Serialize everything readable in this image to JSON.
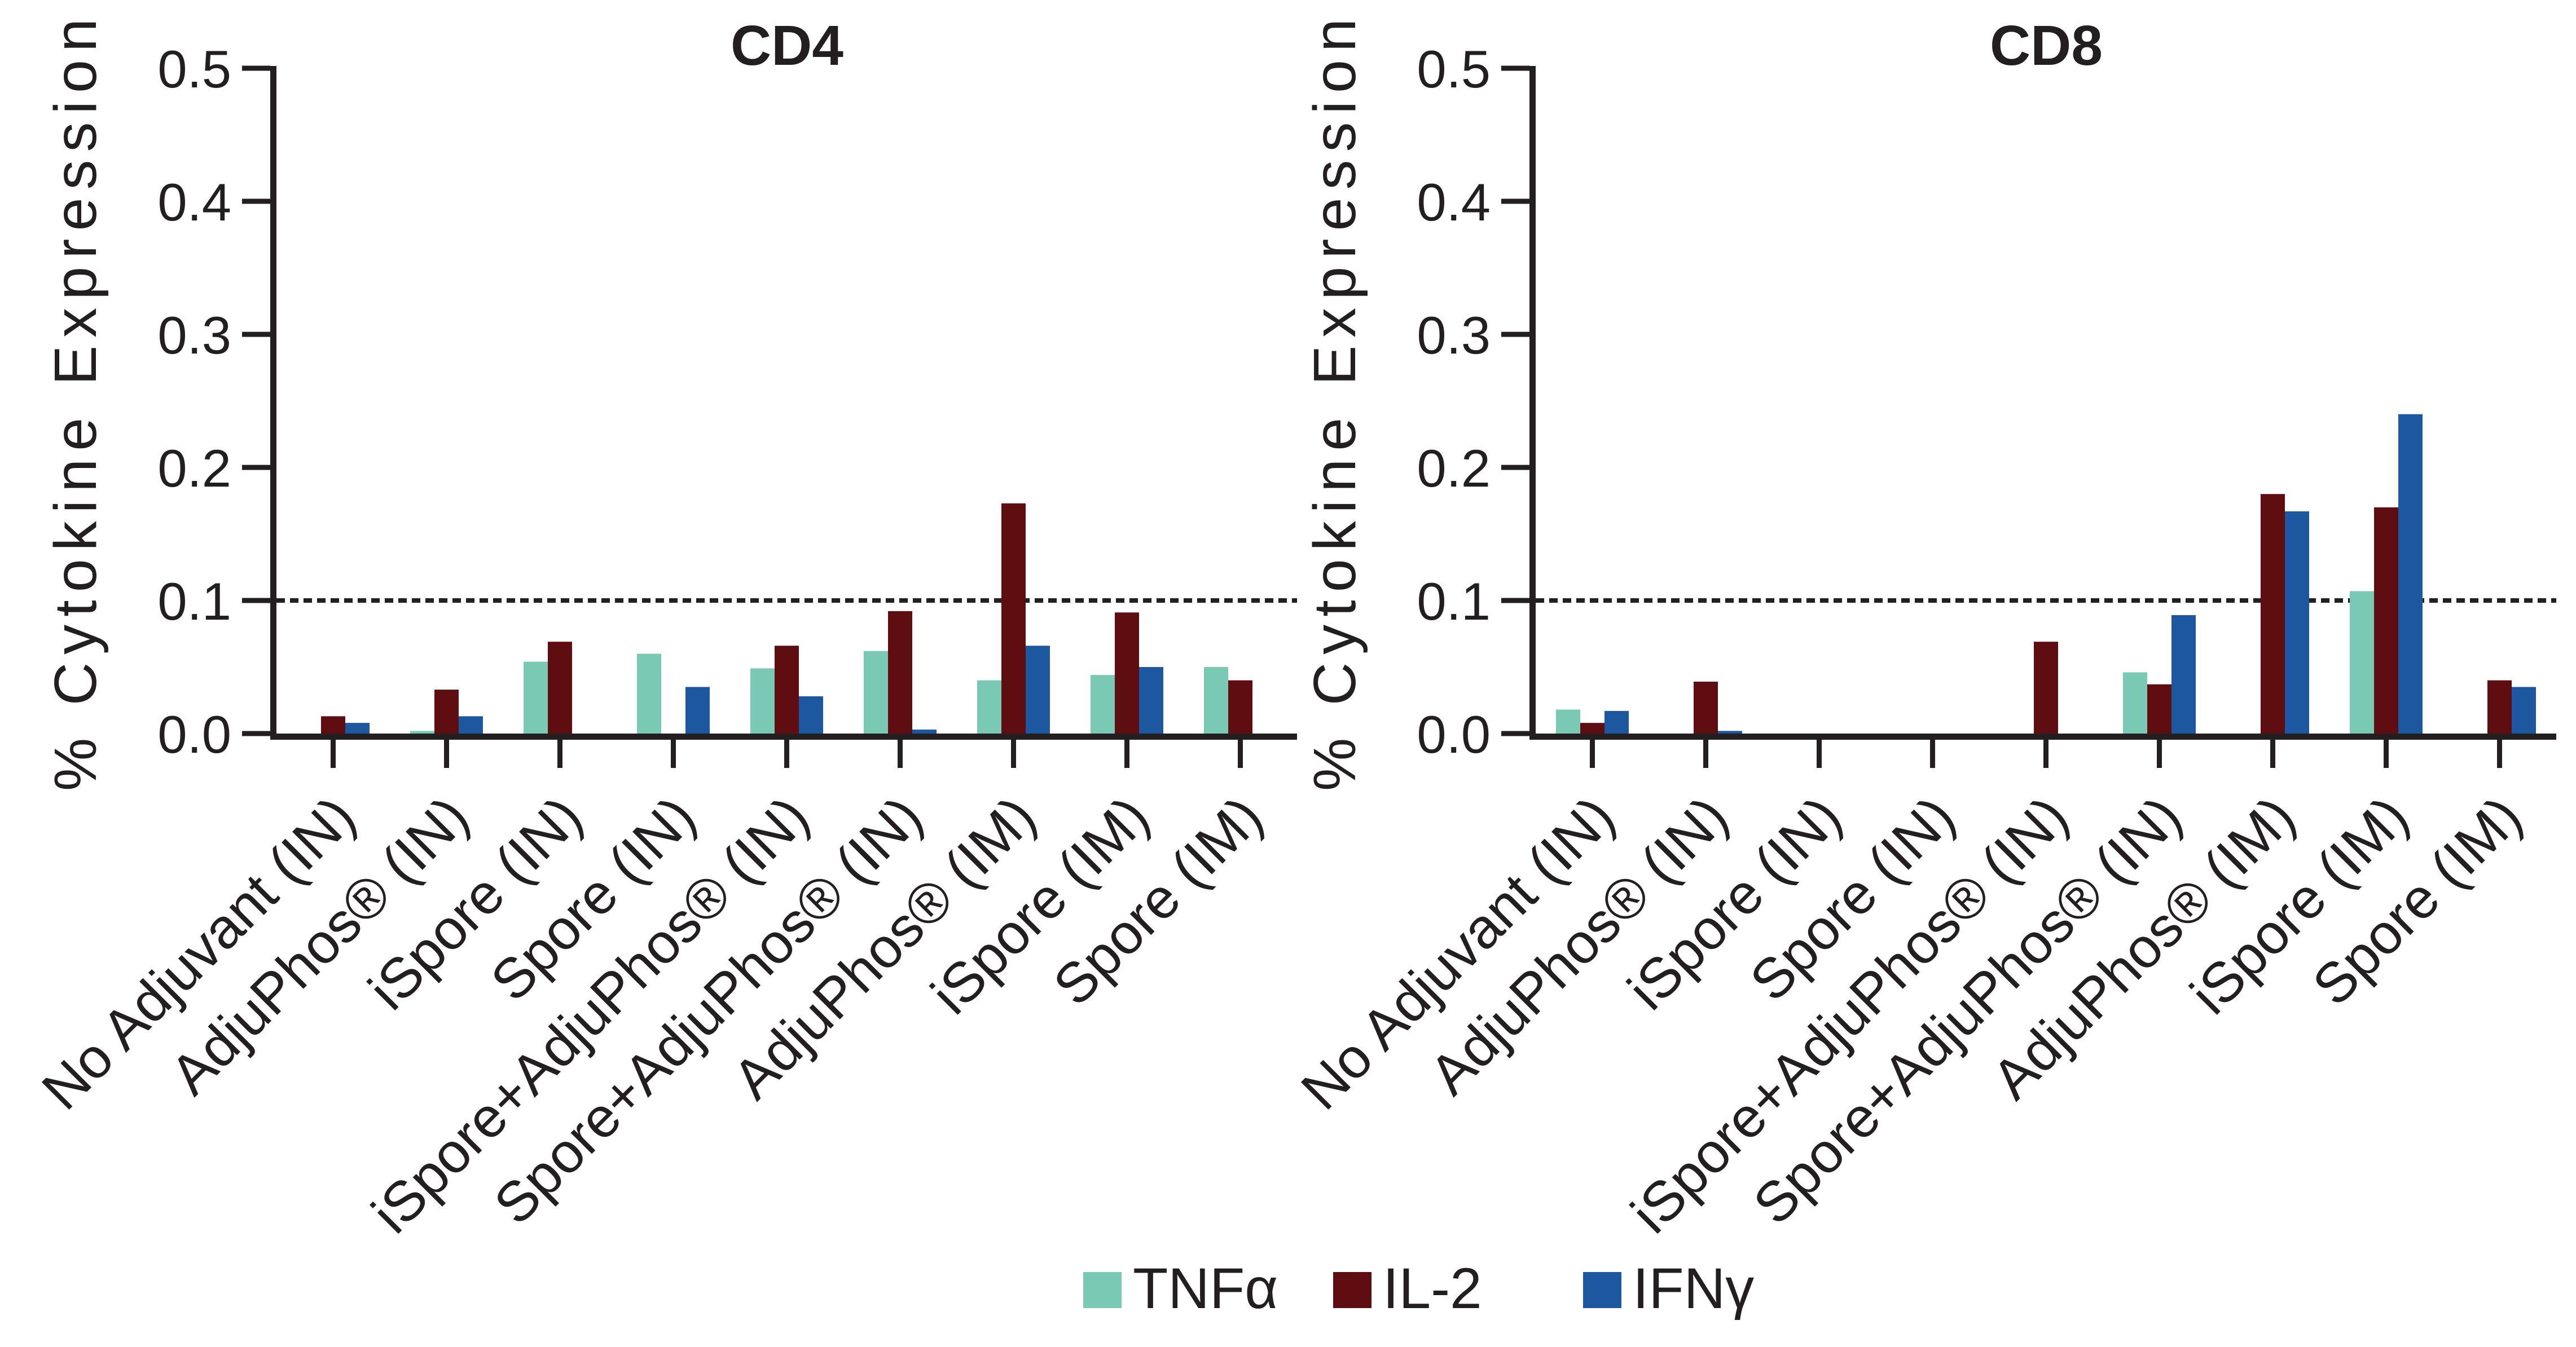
{
  "figure": {
    "background_color": "#ffffff",
    "ink_color": "#231F20"
  },
  "legend": {
    "items": [
      {
        "label": "TNFα",
        "color": "#7AC9B5"
      },
      {
        "label": "IL-2",
        "color": "#5E0E11"
      },
      {
        "label": "IFNγ",
        "color": "#1C57A0"
      }
    ]
  },
  "chart_data": [
    {
      "type": "bar",
      "title": "CD4",
      "ylabel": "% Cytokine Expression",
      "xlabel": "",
      "ylim": [
        0,
        0.5
      ],
      "ytick_labels": [
        "0.0",
        "0.1",
        "0.2",
        "0.3",
        "0.4",
        "0.5"
      ],
      "reference_line_y": 0.1,
      "reference_line_style": "dashed",
      "grid": false,
      "legend_position": "bottom",
      "categories": [
        "No Adjuvant (IN)",
        "AdjuPhos® (IN)",
        "iSpore (IN)",
        "Spore (IN)",
        "iSpore+AdjuPhos® (IN)",
        "Spore+AdjuPhos® (IN)",
        "AdjuPhos® (IM)",
        "iSpore (IM)",
        "Spore (IM)"
      ],
      "series": [
        {
          "name": "TNFα",
          "color": "#7AC9B5",
          "values": [
            0,
            0.002,
            0.054,
            0.06,
            0.049,
            0.062,
            0.04,
            0.044,
            0.05
          ]
        },
        {
          "name": "IL-2",
          "color": "#5E0E11",
          "values": [
            0.013,
            0.033,
            0.069,
            0,
            0.066,
            0.092,
            0.173,
            0.091,
            0.04
          ]
        },
        {
          "name": "IFNγ",
          "color": "#1C57A0",
          "values": [
            0.008,
            0.013,
            0,
            0.035,
            0.028,
            0.003,
            0.066,
            0.05,
            0
          ]
        }
      ]
    },
    {
      "type": "bar",
      "title": "CD8",
      "ylabel": "% Cytokine Expression",
      "xlabel": "",
      "ylim": [
        0,
        0.5
      ],
      "ytick_labels": [
        "0.0",
        "0.1",
        "0.2",
        "0.3",
        "0.4",
        "0.5"
      ],
      "reference_line_y": 0.1,
      "reference_line_style": "dashed",
      "grid": false,
      "legend_position": "bottom",
      "categories": [
        "No Adjuvant (IN)",
        "AdjuPhos® (IN)",
        "iSpore (IN)",
        "Spore (IN)",
        "iSpore+AdjuPhos® (IN)",
        "Spore+AdjuPhos® (IN)",
        "AdjuPhos® (IM)",
        "iSpore (IM)",
        "Spore (IM)"
      ],
      "series": [
        {
          "name": "TNFα",
          "color": "#7AC9B5",
          "values": [
            0.018,
            0,
            0,
            0,
            0,
            0.046,
            0,
            0.107,
            0
          ]
        },
        {
          "name": "IL-2",
          "color": "#5E0E11",
          "values": [
            0.008,
            0.039,
            0,
            0,
            0.069,
            0.037,
            0.18,
            0.17,
            0.04
          ]
        },
        {
          "name": "IFNγ",
          "color": "#1C57A0",
          "values": [
            0.017,
            0.002,
            0,
            0,
            0,
            0.089,
            0.167,
            0.24,
            0.035
          ]
        }
      ]
    }
  ]
}
